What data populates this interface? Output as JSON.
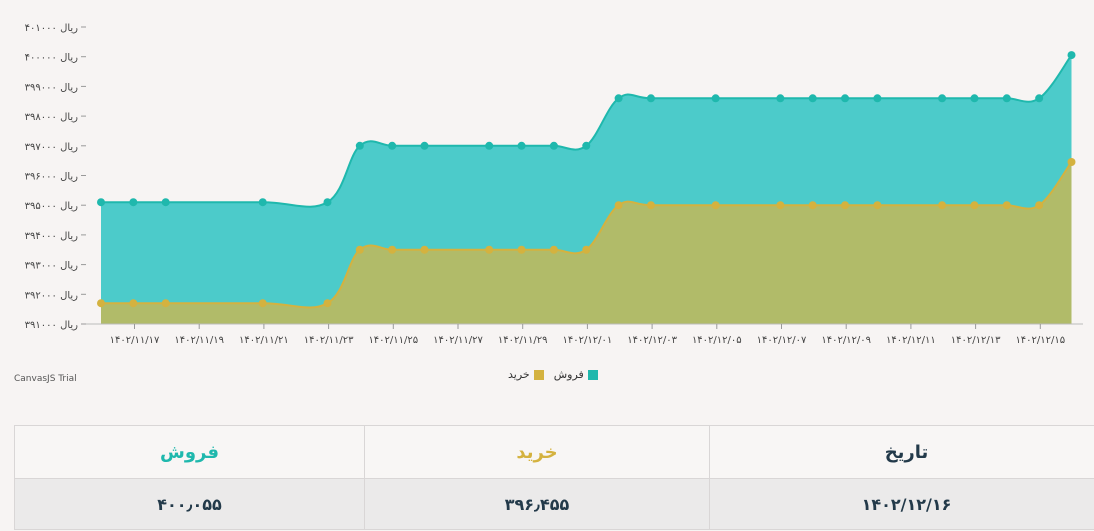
{
  "chart_data": {
    "type": "area",
    "title": "",
    "xlabel": "",
    "ylabel": "",
    "ylim": [
      391000,
      401000
    ],
    "y_ticks": [
      {
        "value": 391000,
        "label": "۳۹۱۰۰۰ ریال"
      },
      {
        "value": 392000,
        "label": "۳۹۲۰۰۰ ریال"
      },
      {
        "value": 393000,
        "label": "۳۹۳۰۰۰ ریال"
      },
      {
        "value": 394000,
        "label": "۳۹۴۰۰۰ ریال"
      },
      {
        "value": 395000,
        "label": "۳۹۵۰۰۰ ریال"
      },
      {
        "value": 396000,
        "label": "۳۹۶۰۰۰ ریال"
      },
      {
        "value": 397000,
        "label": "۳۹۷۰۰۰ ریال"
      },
      {
        "value": 398000,
        "label": "۳۹۸۰۰۰ ریال"
      },
      {
        "value": 399000,
        "label": "۳۹۹۰۰۰ ریال"
      },
      {
        "value": 400000,
        "label": "۴۰۰۰۰۰ ریال"
      },
      {
        "value": 401000,
        "label": "۴۰۱۰۰۰ ریال"
      }
    ],
    "x_ticks": [
      "۱۴۰۲/۱۱/۱۷",
      "۱۴۰۲/۱۱/۱۹",
      "۱۴۰۲/۱۱/۲۱",
      "۱۴۰۲/۱۱/۲۳",
      "۱۴۰۲/۱۱/۲۵",
      "۱۴۰۲/۱۱/۲۷",
      "۱۴۰۲/۱۱/۲۹",
      "۱۴۰۲/۱۲/۰۱",
      "۱۴۰۲/۱۲/۰۳",
      "۱۴۰۲/۱۲/۰۵",
      "۱۴۰۲/۱۲/۰۷",
      "۱۴۰۲/۱۲/۰۹",
      "۱۴۰۲/۱۲/۱۱",
      "۱۴۰۲/۱۲/۱۳",
      "۱۴۰۲/۱۲/۱۵"
    ],
    "x": [
      "1402/11/16",
      "1402/11/17",
      "1402/11/18",
      "1402/11/21",
      "1402/11/23",
      "1402/11/24",
      "1402/11/25",
      "1402/11/26",
      "1402/11/28",
      "1402/11/29",
      "1402/11/30",
      "1402/12/01",
      "1402/12/02",
      "1402/12/03",
      "1402/12/05",
      "1402/12/07",
      "1402/12/08",
      "1402/12/09",
      "1402/12/10",
      "1402/12/12",
      "1402/12/13",
      "1402/12/14",
      "1402/12/15",
      "1402/12/16"
    ],
    "series": [
      {
        "name": "فروش",
        "color": "#4ccbca",
        "marker_color": "#1fb8ad",
        "values": [
          395100,
          395100,
          395100,
          395100,
          395100,
          397000,
          397000,
          397000,
          397000,
          397000,
          397000,
          397000,
          398600,
          398600,
          398600,
          398600,
          398600,
          398600,
          398600,
          398600,
          398600,
          398600,
          398600,
          400055
        ]
      },
      {
        "name": "خرید",
        "color": "#b1bb69",
        "marker_color": "#d4b23f",
        "values": [
          391700,
          391700,
          391700,
          391700,
          391700,
          393500,
          393500,
          393500,
          393500,
          393500,
          393500,
          393500,
          395000,
          395000,
          395000,
          395000,
          395000,
          395000,
          395000,
          395000,
          395000,
          395000,
          395000,
          396455
        ]
      }
    ],
    "legend": {
      "placement": "bottom-center",
      "items": [
        "فروش",
        "خرید"
      ]
    },
    "grid": false
  },
  "credit": "CanvasJS Trial",
  "table": {
    "headers": {
      "sell": "فروش",
      "buy": "خرید",
      "date": "تاریخ"
    },
    "row": {
      "sell": "۴۰۰٫۰۵۵",
      "buy": "۳۹۶٫۴۵۵",
      "date": "۱۴۰۲/۱۲/۱۶"
    }
  }
}
